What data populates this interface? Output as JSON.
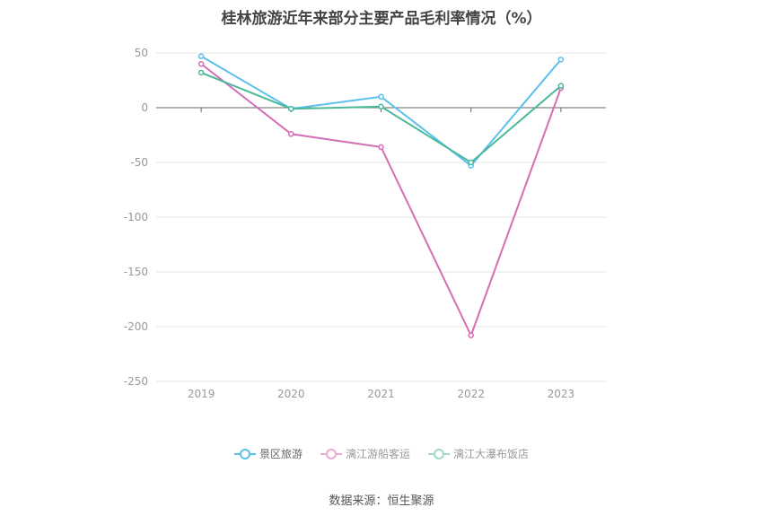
{
  "title": "桂林旅游近年来部分主要产品毛利率情况（%）",
  "source": "数据来源：恒生聚源",
  "chart_data": {
    "type": "line",
    "title": "桂林旅游近年来部分主要产品毛利率情况（%）",
    "categories": [
      "2019",
      "2020",
      "2021",
      "2022",
      "2023"
    ],
    "ylim": [
      -250,
      50
    ],
    "yticks": [
      50,
      0,
      -50,
      -100,
      -150,
      -200,
      -250
    ],
    "grid": true,
    "legend_position": "bottom",
    "series": [
      {
        "name": "景区旅游",
        "color": "#5bc0eb",
        "values": [
          47,
          -1,
          10,
          -53,
          44
        ]
      },
      {
        "name": "漓江游船客运",
        "color": "#d56eb4",
        "values": [
          40,
          -24,
          -36,
          -208,
          18
        ]
      },
      {
        "name": "漓江大瀑布饭店",
        "color": "#4cb89a",
        "values": [
          32,
          -1,
          1,
          -50,
          20
        ]
      }
    ]
  }
}
